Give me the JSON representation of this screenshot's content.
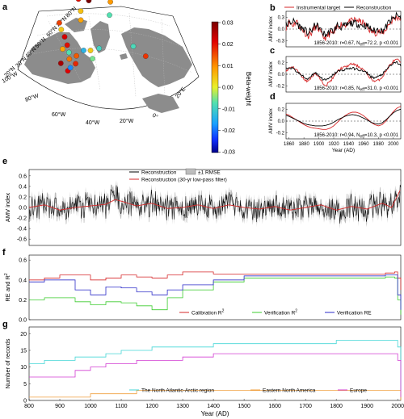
{
  "panel_letters": [
    "a",
    "b",
    "c",
    "d",
    "e",
    "f",
    "g"
  ],
  "colors": {
    "land": "#8c8c8c",
    "sea": "#ffffff",
    "black": "#000000",
    "red": "#d62728",
    "green": "#3ccc2f",
    "blue": "#2b2bc8",
    "cyan": "#43d6d6",
    "orange": "#f0a040",
    "magenta": "#d23cd2",
    "rmse": "#bdbdbd"
  },
  "map": {
    "lat_labels": [
      "80°N",
      "70°N",
      "60°N",
      "50°N",
      "40°N",
      "30°N",
      "20°N"
    ],
    "lon_labels": [
      "100°W",
      "80°W",
      "60°W",
      "40°W",
      "20°W",
      "0°",
      "20°E"
    ],
    "colorbar": {
      "label": "Beta-weight",
      "ticks": [
        "0.03",
        "0.02",
        "0.01",
        "0.00",
        "-0.01",
        "-0.02",
        "-0.03"
      ],
      "min": -0.03,
      "max": 0.03
    },
    "proxy_sites": [
      {
        "lon": -150,
        "lat": 69,
        "beta": 0.0
      },
      {
        "lon": -115,
        "lat": 66,
        "beta": 0.02
      },
      {
        "lon": -96,
        "lat": 69,
        "beta": 0.03
      },
      {
        "lon": -92,
        "lat": 72,
        "beta": 0.025
      },
      {
        "lon": -84,
        "lat": 73,
        "beta": 0.012
      },
      {
        "lon": -74,
        "lat": 77,
        "beta": -0.028
      },
      {
        "lon": -64,
        "lat": 82,
        "beta": -0.03
      },
      {
        "lon": -70,
        "lat": 80,
        "beta": 0.02
      },
      {
        "lon": -80,
        "lat": 78,
        "beta": 0.022
      },
      {
        "lon": -95,
        "lat": 76,
        "beta": 0.016
      },
      {
        "lon": -97,
        "lat": 62,
        "beta": 0.005
      },
      {
        "lon": -89,
        "lat": 58,
        "beta": 0.008
      },
      {
        "lon": -110,
        "lat": 50,
        "beta": 0.016
      },
      {
        "lon": -103,
        "lat": 48,
        "beta": 0.004
      },
      {
        "lon": -95,
        "lat": 46,
        "beta": 0.022
      },
      {
        "lon": -88,
        "lat": 43,
        "beta": 0.02
      },
      {
        "lon": -90,
        "lat": 40,
        "beta": 0.008
      },
      {
        "lon": -83,
        "lat": 40,
        "beta": -0.004
      },
      {
        "lon": -80,
        "lat": 37,
        "beta": 0.012
      },
      {
        "lon": -85,
        "lat": 33,
        "beta": 0.026
      },
      {
        "lon": -75,
        "lat": 40,
        "beta": 0.014
      },
      {
        "lon": -77,
        "lat": 31,
        "beta": 0.021
      },
      {
        "lon": -76,
        "lat": 33,
        "beta": -0.015
      },
      {
        "lon": -73,
        "lat": 36,
        "beta": 0.018
      },
      {
        "lon": -70,
        "lat": 44,
        "beta": -0.01
      },
      {
        "lon": -63,
        "lat": 45,
        "beta": 0.004
      },
      {
        "lon": -59,
        "lat": 41,
        "beta": -0.003
      },
      {
        "lon": -54,
        "lat": 47,
        "beta": -0.006
      },
      {
        "lon": -43,
        "lat": 72,
        "beta": 0.009
      },
      {
        "lon": -44,
        "lat": 65,
        "beta": -0.004
      },
      {
        "lon": -15,
        "lat": 47,
        "beta": -0.005
      },
      {
        "lon": -6,
        "lat": 40,
        "beta": 0.017
      }
    ]
  },
  "panel_b": {
    "legend": [
      "Instrumental target",
      "Reconstruction"
    ],
    "ylabel": "AMV index",
    "yticks": [
      "0.3",
      "0.0",
      "-0.3"
    ],
    "stats": "1856-2010: r=0.67, N",
    "stats_sub": "eff",
    "stats_tail": "=72.2,  p <0.001",
    "xlim": [
      1856,
      2010
    ],
    "ylim": [
      -0.45,
      0.45
    ]
  },
  "panel_c": {
    "ylabel": "AMV index",
    "yticks": [
      "0.2",
      "0.0",
      "-0.2"
    ],
    "stats": "1856-2010: r=0.85, N",
    "stats_sub": "eff",
    "stats_tail": "=31.0,  p <0.001",
    "ylim": [
      -0.3,
      0.3
    ]
  },
  "panel_d": {
    "ylabel": "AMV index",
    "yticks": [
      "0.2",
      "0.0",
      "-0.2"
    ],
    "stats": "1856-2010: r=0.94, N",
    "stats_sub": "eff",
    "stats_tail": "=10.3,  p <0.001",
    "ylim": [
      -0.3,
      0.3
    ],
    "xticks": [
      "1860",
      "1880",
      "1900",
      "1920",
      "1940",
      "1960",
      "1980",
      "2000"
    ],
    "xlabel": "Year (AD)"
  },
  "panel_e": {
    "legend": [
      "Reconstruction",
      "±1 RMSE",
      "Reconstruction (30-yr low-pass filter)"
    ],
    "ylabel": "AMV index",
    "yticks": [
      "0.6",
      "0.4",
      "0.2",
      "0.0",
      "-0.2",
      "-0.4",
      "-0.6"
    ],
    "ylim": [
      -0.72,
      0.72
    ],
    "xlim": [
      800,
      2010
    ]
  },
  "panel_f": {
    "ylabel": "RE and R",
    "ylabel_sup": "2",
    "yticks": [
      "0.6",
      "0.4",
      "0.2",
      "0.0"
    ],
    "ylim": [
      0.0,
      0.65
    ],
    "legend": [
      {
        "label": "Calibration R",
        "sup": "2",
        "color": "#d62728"
      },
      {
        "label": "Verification R",
        "sup": "2",
        "color": "#3ccc2f"
      },
      {
        "label": "Verification RE",
        "sup": "",
        "color": "#2b2bc8"
      }
    ]
  },
  "panel_g": {
    "ylabel": "Number of records",
    "yticks": [
      "20",
      "15",
      "10",
      "5",
      "0"
    ],
    "ylim": [
      0,
      22
    ],
    "xticks": [
      "800",
      "900",
      "1000",
      "1100",
      "1200",
      "1300",
      "1400",
      "1500",
      "1600",
      "1700",
      "1800",
      "1900",
      "2000"
    ],
    "xlabel": "Year (AD)",
    "legend": [
      {
        "label": "The North Atlantic-Arctic region",
        "color": "#43d6d6"
      },
      {
        "label": "Eastern North America",
        "color": "#f0a040"
      },
      {
        "label": "Europe",
        "color": "#d23cd2"
      }
    ]
  },
  "chart_data": [
    {
      "type": "scatter",
      "panel": "a",
      "title": "",
      "xlabel": "",
      "ylabel": "",
      "colorbar_label": "Beta-weight",
      "colorbar_range": [
        -0.03,
        0.03
      ]
    },
    {
      "type": "line",
      "panel": "b",
      "ylabel": "AMV index",
      "xlim": [
        1856,
        2010
      ],
      "ylim": [
        -0.45,
        0.45
      ],
      "x": [
        1856,
        1860,
        1865,
        1870,
        1875,
        1880,
        1885,
        1890,
        1895,
        1900,
        1905,
        1910,
        1915,
        1920,
        1925,
        1930,
        1935,
        1940,
        1945,
        1950,
        1955,
        1960,
        1965,
        1970,
        1975,
        1980,
        1985,
        1990,
        1995,
        2000,
        2005,
        2010
      ],
      "series": [
        {
          "name": "Instrumental target",
          "color": "#d62728",
          "values": [
            0.05,
            0.18,
            0.1,
            0.2,
            0.02,
            -0.05,
            -0.18,
            -0.1,
            0.05,
            0.0,
            -0.2,
            -0.22,
            -0.1,
            -0.12,
            0.05,
            0.12,
            0.1,
            0.18,
            0.2,
            0.25,
            0.18,
            0.15,
            0.05,
            -0.05,
            -0.1,
            -0.05,
            -0.12,
            0.0,
            0.15,
            0.25,
            0.3,
            0.28
          ]
        },
        {
          "name": "Reconstruction",
          "color": "#000000",
          "values": [
            0.1,
            0.15,
            0.2,
            0.15,
            0.05,
            0.0,
            -0.1,
            -0.05,
            0.1,
            0.05,
            -0.1,
            -0.15,
            -0.05,
            -0.05,
            0.1,
            0.05,
            0.08,
            0.12,
            0.15,
            0.15,
            0.1,
            0.1,
            0.08,
            0.0,
            -0.05,
            0.0,
            -0.05,
            0.05,
            0.2,
            0.25,
            0.35,
            0.28
          ]
        }
      ]
    },
    {
      "type": "line",
      "panel": "c",
      "ylabel": "AMV index",
      "ylim": [
        -0.3,
        0.3
      ],
      "x": [
        1856,
        1860,
        1865,
        1870,
        1875,
        1880,
        1885,
        1890,
        1895,
        1900,
        1905,
        1910,
        1915,
        1920,
        1925,
        1930,
        1935,
        1940,
        1945,
        1950,
        1955,
        1960,
        1965,
        1970,
        1975,
        1980,
        1985,
        1990,
        1995,
        2000,
        2005,
        2010
      ],
      "series": [
        {
          "name": "Instrumental target",
          "color": "#d62728",
          "values": [
            0.05,
            0.1,
            0.12,
            0.08,
            0.0,
            -0.08,
            -0.12,
            -0.05,
            0.02,
            -0.05,
            -0.15,
            -0.18,
            -0.12,
            -0.05,
            0.05,
            0.1,
            0.12,
            0.15,
            0.18,
            0.15,
            0.12,
            0.08,
            0.0,
            -0.08,
            -0.12,
            -0.1,
            -0.05,
            0.05,
            0.15,
            0.22,
            0.25,
            0.2
          ]
        },
        {
          "name": "Reconstruction",
          "color": "#000000",
          "values": [
            0.08,
            0.12,
            0.1,
            0.05,
            0.0,
            -0.05,
            -0.08,
            -0.02,
            0.03,
            -0.02,
            -0.08,
            -0.1,
            -0.06,
            0.0,
            0.05,
            0.06,
            0.08,
            0.1,
            0.1,
            0.09,
            0.07,
            0.05,
            0.02,
            -0.04,
            -0.06,
            -0.04,
            0.0,
            0.06,
            0.14,
            0.18,
            0.2,
            0.15
          ]
        }
      ]
    },
    {
      "type": "line",
      "panel": "d",
      "ylabel": "AMV index",
      "xlabel": "Year (AD)",
      "ylim": [
        -0.3,
        0.3
      ],
      "x": [
        1856,
        1860,
        1865,
        1870,
        1875,
        1880,
        1885,
        1890,
        1895,
        1900,
        1905,
        1910,
        1915,
        1920,
        1925,
        1930,
        1935,
        1940,
        1945,
        1950,
        1955,
        1960,
        1965,
        1970,
        1975,
        1980,
        1985,
        1990,
        1995,
        2000,
        2005,
        2010
      ],
      "series": [
        {
          "name": "Instrumental target",
          "color": "#d62728",
          "values": [
            0.12,
            0.1,
            0.06,
            0.02,
            -0.02,
            -0.06,
            -0.09,
            -0.11,
            -0.12,
            -0.13,
            -0.14,
            -0.14,
            -0.12,
            -0.08,
            -0.02,
            0.04,
            0.09,
            0.13,
            0.15,
            0.15,
            0.13,
            0.09,
            0.04,
            -0.02,
            -0.06,
            -0.08,
            -0.06,
            0.0,
            0.08,
            0.16,
            0.22,
            0.25
          ]
        },
        {
          "name": "Reconstruction",
          "color": "#000000",
          "values": [
            0.1,
            0.08,
            0.05,
            0.02,
            -0.01,
            -0.04,
            -0.06,
            -0.07,
            -0.08,
            -0.08,
            -0.08,
            -0.07,
            -0.05,
            -0.02,
            0.02,
            0.05,
            0.08,
            0.1,
            0.11,
            0.1,
            0.08,
            0.05,
            0.02,
            -0.02,
            -0.04,
            -0.05,
            -0.03,
            0.02,
            0.08,
            0.14,
            0.18,
            0.2
          ]
        }
      ]
    },
    {
      "type": "line",
      "panel": "e",
      "ylabel": "AMV index",
      "xlim": [
        800,
        2010
      ],
      "ylim": [
        -0.72,
        0.72
      ],
      "x": [
        800,
        850,
        900,
        950,
        1000,
        1050,
        1080,
        1100,
        1150,
        1200,
        1250,
        1300,
        1350,
        1400,
        1450,
        1500,
        1550,
        1600,
        1650,
        1700,
        1750,
        1800,
        1850,
        1900,
        1950,
        1980,
        2010
      ],
      "series": [
        {
          "name": "Reconstruction (30-yr low-pass filter)",
          "color": "#d62728",
          "values": [
            0.0,
            0.05,
            -0.05,
            0.0,
            0.03,
            0.06,
            0.15,
            0.12,
            0.03,
            0.08,
            -0.02,
            0.0,
            0.05,
            -0.02,
            0.05,
            0.0,
            -0.03,
            0.02,
            -0.05,
            0.0,
            0.05,
            -0.05,
            0.02,
            -0.03,
            0.08,
            0.0,
            0.35
          ]
        }
      ]
    },
    {
      "type": "line",
      "panel": "f",
      "ylabel": "RE and R2",
      "xlim": [
        800,
        2010
      ],
      "ylim": [
        0.0,
        0.65
      ],
      "x": [
        800,
        850,
        900,
        950,
        1000,
        1050,
        1100,
        1150,
        1200,
        1250,
        1300,
        1400,
        1500,
        1600,
        1700,
        1800,
        1900,
        1960,
        1990,
        2000,
        2010
      ],
      "series": [
        {
          "name": "Calibration R2",
          "color": "#d62728",
          "values": [
            0.4,
            0.42,
            0.45,
            0.45,
            0.4,
            0.42,
            0.45,
            0.43,
            0.42,
            0.45,
            0.48,
            0.46,
            0.46,
            0.46,
            0.46,
            0.46,
            0.46,
            0.47,
            0.48,
            0.42,
            0.3
          ]
        },
        {
          "name": "Verification R2",
          "color": "#3ccc2f",
          "values": [
            0.2,
            0.22,
            0.22,
            0.18,
            0.15,
            0.18,
            0.17,
            0.14,
            0.1,
            0.22,
            0.3,
            0.38,
            0.42,
            0.42,
            0.42,
            0.42,
            0.42,
            0.43,
            0.42,
            0.2,
            0.05
          ]
        },
        {
          "name": "Verification RE",
          "color": "#2b2bc8",
          "values": [
            0.38,
            0.4,
            0.4,
            0.3,
            0.25,
            0.33,
            0.32,
            0.28,
            0.25,
            0.3,
            0.35,
            0.4,
            0.44,
            0.44,
            0.44,
            0.44,
            0.44,
            0.45,
            0.45,
            0.25,
            0.1
          ]
        }
      ]
    },
    {
      "type": "line",
      "panel": "g",
      "ylabel": "Number of records",
      "xlabel": "Year (AD)",
      "xlim": [
        800,
        2010
      ],
      "ylim": [
        0,
        22
      ],
      "x": [
        800,
        850,
        900,
        950,
        1000,
        1050,
        1100,
        1150,
        1200,
        1250,
        1300,
        1400,
        1500,
        1600,
        1700,
        1800,
        1900,
        1950,
        1990,
        2000,
        2010
      ],
      "series": [
        {
          "name": "The North Atlantic-Arctic region",
          "color": "#43d6d6",
          "values": [
            11,
            12,
            12,
            13,
            13,
            14,
            15,
            15,
            16,
            16,
            16,
            17,
            17,
            17,
            17,
            18,
            18,
            18,
            18,
            16,
            2
          ]
        },
        {
          "name": "Eastern North America",
          "color": "#f0a040",
          "values": [
            1,
            1,
            1,
            1,
            2,
            2,
            2,
            3,
            3,
            3,
            3,
            3,
            3,
            3,
            3,
            3,
            3,
            3,
            3,
            3,
            0
          ]
        },
        {
          "name": "Europe",
          "color": "#d23cd2",
          "values": [
            7,
            7,
            7,
            9,
            10,
            11,
            11,
            12,
            12,
            12,
            13,
            14,
            14,
            14,
            14,
            14,
            14,
            14,
            14,
            12,
            1
          ]
        }
      ]
    }
  ]
}
